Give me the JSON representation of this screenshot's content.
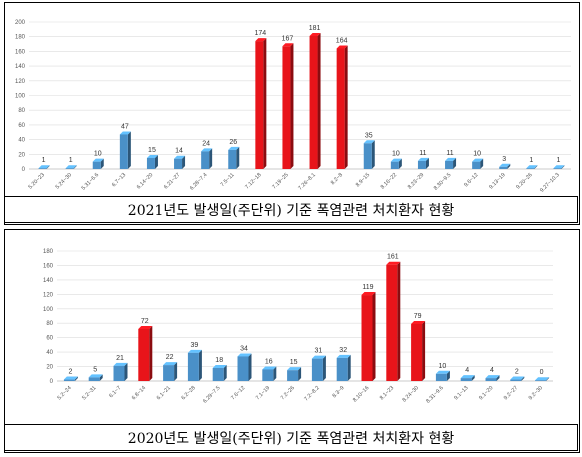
{
  "chart_data": [
    {
      "type": "bar",
      "title": "2021년도 발생일(주단위) 기준 폭염관련 처치환자 현황",
      "ylim": [
        0,
        200
      ],
      "yticks": [
        0,
        20,
        40,
        60,
        80,
        100,
        120,
        140,
        160,
        180,
        200
      ],
      "grid": true,
      "categories": [
        "5.20~23",
        "5.24~30",
        "5.31~6.6",
        "6.7~13",
        "6.14~20",
        "6.21~27",
        "6.28~7.4",
        "7.5~11",
        "7.12~18",
        "7.19~25",
        "7.26~8.1",
        "8.2~8",
        "8.9~15",
        "8.16~22",
        "8.23~29",
        "8.30~9.5",
        "9.6~12",
        "9.13~19",
        "9.20~26",
        "9.27~10.3"
      ],
      "values": [
        1,
        1,
        10,
        47,
        15,
        14,
        24,
        26,
        174,
        167,
        181,
        164,
        35,
        10,
        11,
        11,
        10,
        3,
        1,
        1
      ],
      "highlight": [
        8,
        9,
        10,
        11
      ],
      "colors": {
        "normal": "#4a90c8",
        "highlight": "#e8141a"
      }
    },
    {
      "type": "bar",
      "title": "2020년도 발생일(주단위) 기준 폭염관련 처치환자 현황",
      "ylim": [
        0,
        180
      ],
      "yticks": [
        0,
        20,
        40,
        60,
        80,
        100,
        120,
        140,
        160,
        180
      ],
      "grid": true,
      "categories": [
        "5.2~24",
        "5.2~31",
        "6.1~7",
        "6.8~14",
        "6.1~21",
        "6.2~28",
        "6.29~7.5",
        "7.6~12",
        "7.1~19",
        "7.2~26",
        "7.2~8.2",
        "8.3~9",
        "8.10~16",
        "8.1~23",
        "8.24~30",
        "8.31~9.6",
        "9.1~13",
        "9.1~20",
        "9.2~27",
        "9.2~30"
      ],
      "values": [
        2,
        5,
        21,
        72,
        22,
        39,
        18,
        34,
        16,
        15,
        31,
        32,
        119,
        161,
        79,
        10,
        4,
        4,
        2,
        0
      ],
      "highlight": [
        3,
        12,
        13,
        14
      ],
      "colors": {
        "normal": "#4a90c8",
        "highlight": "#e8141a"
      }
    }
  ],
  "captions": {
    "top": "2021년도 발생일(주단위) 기준 폭염관련 처치환자 현황",
    "bottom": "2020년도 발생일(주단위) 기준 폭염관련 처치환자 현황"
  }
}
